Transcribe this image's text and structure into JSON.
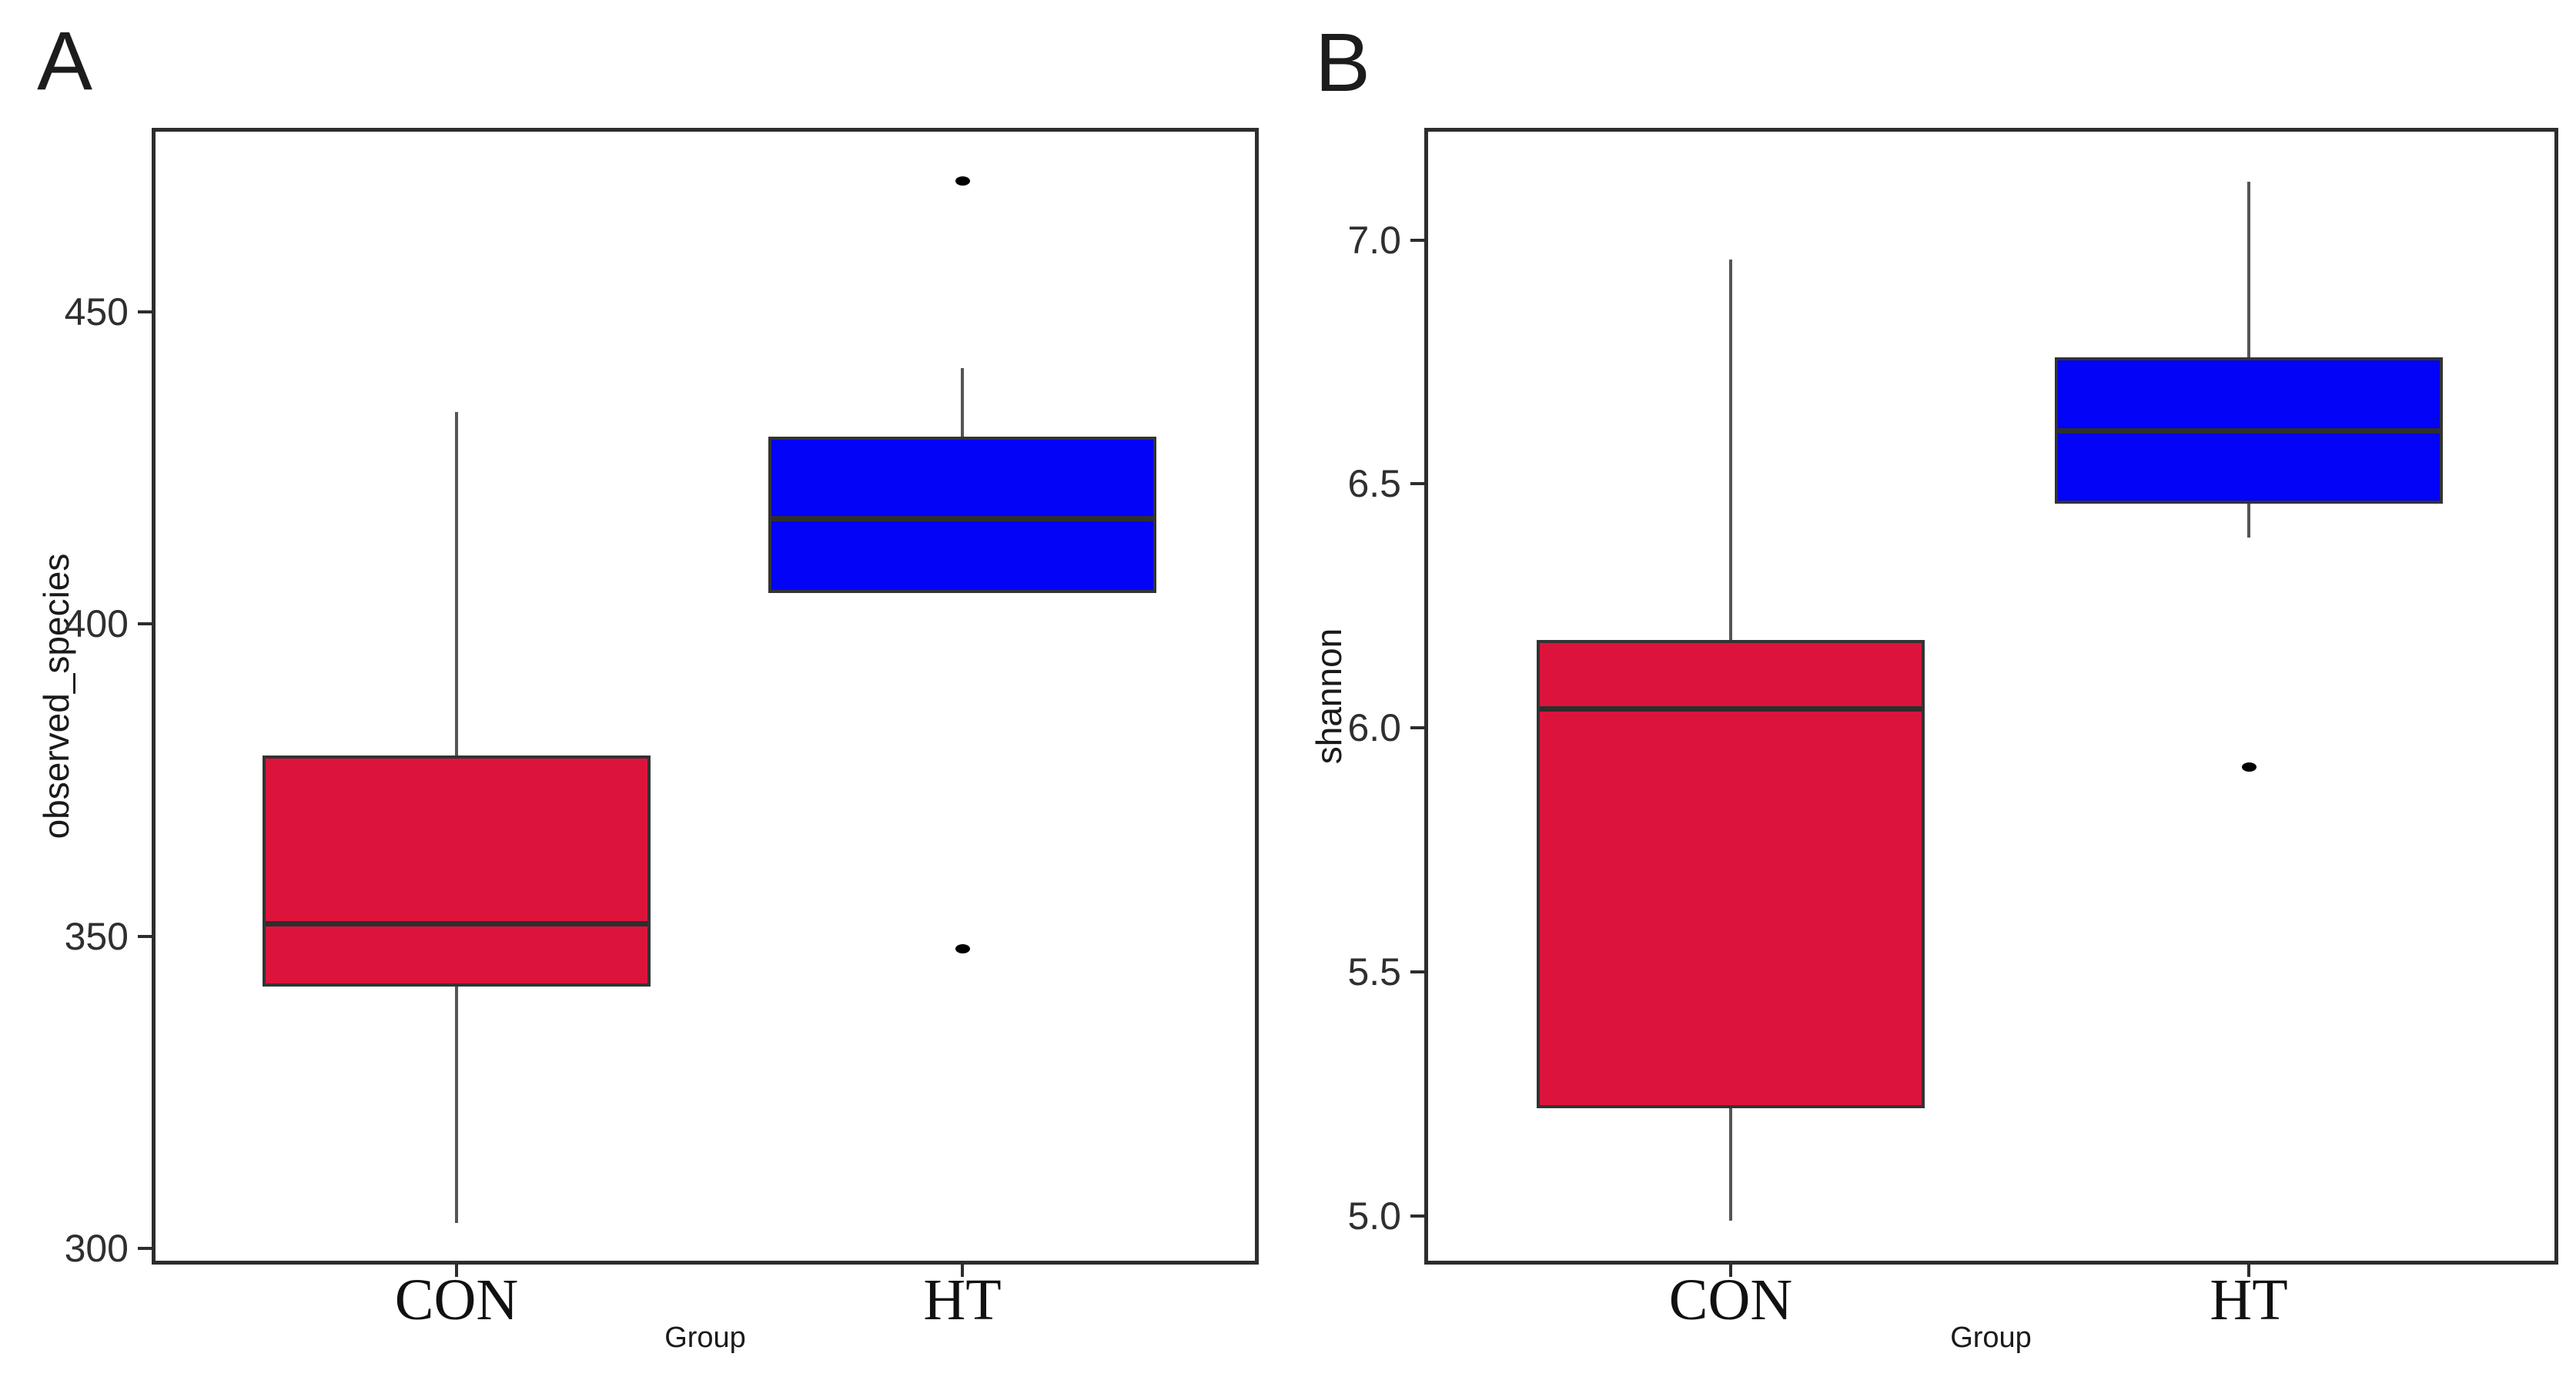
{
  "figure": {
    "background": "#ffffff"
  },
  "chart_data": {
    "type": "box",
    "layout": "two-panel horizontal",
    "grid": false,
    "legend": false,
    "style": {
      "frame_color": "#2d2d2d",
      "box_border_color": "#333333",
      "median_color": "#2e2e2e",
      "whisker_color": "#555555",
      "outlier_color": "#000000",
      "con_fill": "#DC143C",
      "ht_fill": "#0303F8"
    },
    "panels": [
      {
        "label": "A",
        "ylabel": "observed_species",
        "xlabel": "Group",
        "ylim": [
          297.4,
          479.5
        ],
        "yticks": [
          {
            "value": 300,
            "label": "300"
          },
          {
            "value": 350,
            "label": "350"
          },
          {
            "value": 400,
            "label": "400"
          },
          {
            "value": 450,
            "label": "450"
          }
        ],
        "categories": [
          "CON",
          "HT"
        ],
        "boxes": [
          {
            "category": "CON",
            "fill": "#DC143C",
            "whisker_low": 304,
            "q1": 342,
            "median": 352,
            "q3": 379,
            "whisker_high": 434,
            "outliers": []
          },
          {
            "category": "HT",
            "fill": "#0303F8",
            "whisker_low": 405,
            "q1": 405,
            "median": 417,
            "q3": 430,
            "whisker_high": 441,
            "outliers": [
              348,
              471
            ]
          }
        ]
      },
      {
        "label": "B",
        "ylabel": "shannon",
        "xlabel": "Group",
        "ylim": [
          4.9,
          7.23
        ],
        "yticks": [
          {
            "value": 5.0,
            "label": "5.0"
          },
          {
            "value": 5.5,
            "label": "5.5"
          },
          {
            "value": 6.0,
            "label": "6.0"
          },
          {
            "value": 6.5,
            "label": "6.5"
          },
          {
            "value": 7.0,
            "label": "7.0"
          }
        ],
        "categories": [
          "CON",
          "HT"
        ],
        "boxes": [
          {
            "category": "CON",
            "fill": "#DC143C",
            "whisker_low": 4.99,
            "q1": 5.22,
            "median": 6.04,
            "q3": 6.18,
            "whisker_high": 6.96,
            "outliers": []
          },
          {
            "category": "HT",
            "fill": "#0303F8",
            "whisker_low": 6.39,
            "q1": 6.46,
            "median": 6.61,
            "q3": 6.76,
            "whisker_high": 7.12,
            "outliers": [
              5.92
            ]
          }
        ]
      }
    ]
  }
}
